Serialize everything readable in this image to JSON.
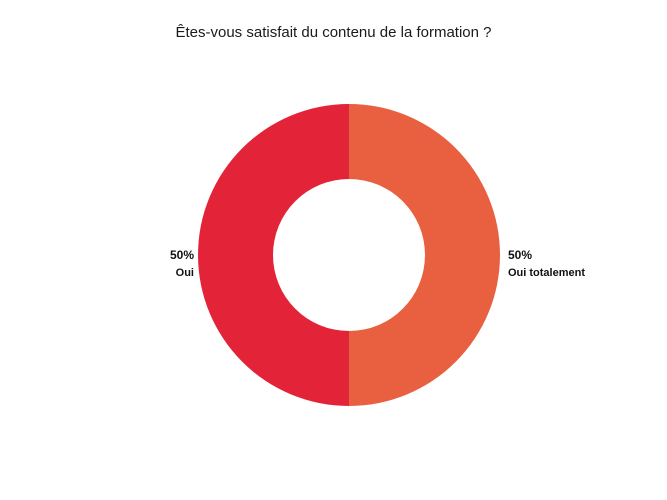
{
  "chart_data": {
    "type": "pie",
    "donut": true,
    "title": "Êtes-vous satisfait du contenu de la formation ?",
    "slices": [
      {
        "label": "Oui totalement",
        "value": 50,
        "value_label": "50%",
        "color": "#E96041"
      },
      {
        "label": "Oui",
        "value": 50,
        "value_label": "50%",
        "color": "#E32438"
      }
    ],
    "legend": "none"
  }
}
